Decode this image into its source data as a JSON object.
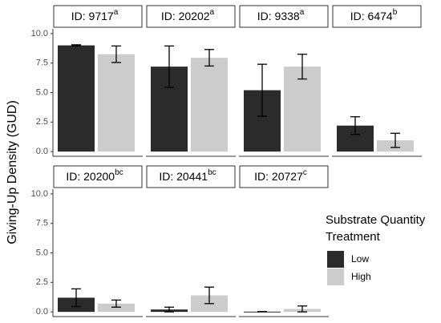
{
  "chart_data": {
    "type": "bar",
    "ylabel": "Giving-Up Density (GUD)",
    "legend_title": "Substrate Quantity Treatment",
    "series": [
      {
        "name": "Low",
        "color": "#2b2b2b"
      },
      {
        "name": "High",
        "color": "#cccccc"
      }
    ],
    "ylim": [
      -0.4,
      10.4
    ],
    "yticks": [
      {
        "value": 0,
        "label": "0.0"
      },
      2.5,
      {
        "value": 5,
        "label": "5.0"
      },
      7.5,
      {
        "value": 10,
        "label": "10.0"
      }
    ],
    "panels": [
      {
        "title": "ID: 9717",
        "superscript": "a",
        "values": [
          9.0,
          8.25
        ],
        "errors": [
          0.05,
          0.7
        ]
      },
      {
        "title": "ID: 20202",
        "superscript": "a",
        "values": [
          7.2,
          7.95
        ],
        "errors": [
          1.75,
          0.7
        ]
      },
      {
        "title": "ID: 9338",
        "superscript": "a",
        "values": [
          5.2,
          7.2
        ],
        "errors": [
          2.2,
          1.05
        ]
      },
      {
        "title": "ID: 6474",
        "superscript": "b",
        "values": [
          2.2,
          0.95
        ],
        "errors": [
          0.75,
          0.6
        ]
      },
      {
        "title": "ID: 20200",
        "superscript": "bc",
        "values": [
          1.2,
          0.7
        ],
        "errors": [
          0.75,
          0.3
        ]
      },
      {
        "title": "ID: 20441",
        "superscript": "bc",
        "values": [
          0.2,
          1.4
        ],
        "errors": [
          0.2,
          0.7
        ]
      },
      {
        "title": "ID: 20727",
        "superscript": "c",
        "values": [
          0.02,
          0.25
        ],
        "errors": [
          0,
          0.25
        ]
      }
    ]
  }
}
